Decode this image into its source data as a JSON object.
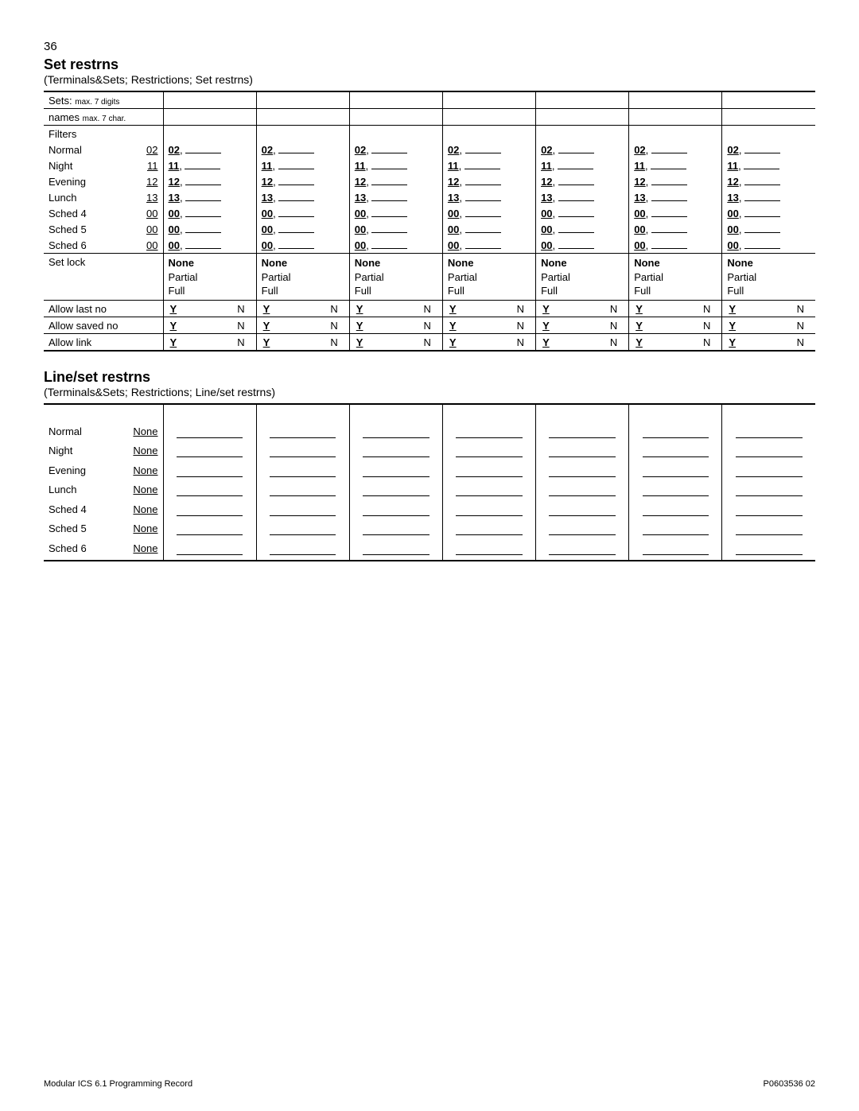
{
  "page_number": "36",
  "section1": {
    "title": "Set restrns",
    "breadcrumb": "(Terminals&Sets; Restrictions; Set restrns)",
    "row_sets_label": "Sets:",
    "row_sets_note": "max. 7 digits",
    "row_names_label": "names",
    "row_names_note": "max. 7 char.",
    "filters_header": "Filters",
    "filter_rows": [
      {
        "label": "Normal",
        "def": "02",
        "val": "02"
      },
      {
        "label": "Night",
        "def": "11",
        "val": "11"
      },
      {
        "label": "Evening",
        "def": "12",
        "val": "12"
      },
      {
        "label": "Lunch",
        "def": "13",
        "val": "13"
      },
      {
        "label": "Sched 4",
        "def": "00",
        "val": "00"
      },
      {
        "label": "Sched 5",
        "def": "00",
        "val": "00"
      },
      {
        "label": "Sched 6",
        "def": "00",
        "val": "00"
      }
    ],
    "setlock_label": "Set lock",
    "setlock_options": [
      "None",
      "Partial",
      "Full"
    ],
    "allow_rows": [
      {
        "label": "Allow last no"
      },
      {
        "label": "Allow saved no"
      },
      {
        "label": "Allow link"
      }
    ],
    "yn_y": "Y",
    "yn_n": "N",
    "num_data_cols": 7
  },
  "section2": {
    "title": "Line/set restrns",
    "breadcrumb": "(Terminals&Sets; Restrictions; Line/set restrns)",
    "rows": [
      {
        "label": "Normal",
        "def": "None"
      },
      {
        "label": "Night",
        "def": "None"
      },
      {
        "label": "Evening",
        "def": "None"
      },
      {
        "label": "Lunch",
        "def": "None"
      },
      {
        "label": "Sched 4",
        "def": "None"
      },
      {
        "label": "Sched 5",
        "def": "None"
      },
      {
        "label": "Sched 6",
        "def": "None"
      }
    ],
    "num_data_cols": 7
  },
  "footer_left": "Modular ICS 6.1 Programming Record",
  "footer_right": "P0603536  02"
}
